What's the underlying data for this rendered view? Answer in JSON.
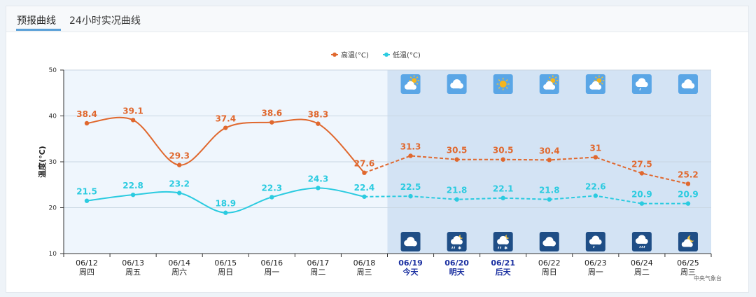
{
  "tabs": [
    {
      "label": "预报曲线",
      "active": true
    },
    {
      "label": "24小时实况曲线",
      "active": false
    }
  ],
  "source_note": "中央气象台",
  "chart_data": {
    "type": "line",
    "ylabel": "温度(°C)",
    "ylim": [
      10,
      50
    ],
    "yticks": [
      10,
      20,
      30,
      40,
      50
    ],
    "grid": true,
    "legend": {
      "placement": "top-center"
    },
    "dates": [
      "06/12",
      "06/13",
      "06/14",
      "06/15",
      "06/16",
      "06/17",
      "06/18",
      "06/19",
      "06/20",
      "06/21",
      "06/22",
      "06/23",
      "06/24",
      "06/25"
    ],
    "weekdays": [
      "周四",
      "周五",
      "周六",
      "周日",
      "周一",
      "周二",
      "周三",
      "今天",
      "明天",
      "后天",
      "周日",
      "周一",
      "周二",
      "周三"
    ],
    "forecast_start_index": 7,
    "highlight_day_indices": [
      7,
      8,
      9
    ],
    "series": [
      {
        "name": "高温(°C)",
        "color": "#e0682e",
        "values": [
          38.4,
          39.1,
          29.3,
          37.4,
          38.6,
          38.3,
          27.6,
          31.3,
          30.5,
          30.5,
          30.4,
          31,
          27.5,
          25.2
        ]
      },
      {
        "name": "低温(°C)",
        "color": "#2bcbe0",
        "values": [
          21.5,
          22.8,
          23.2,
          18.9,
          22.3,
          24.3,
          22.4,
          22.5,
          21.8,
          22.1,
          21.8,
          22.6,
          20.9,
          20.9
        ]
      }
    ],
    "day_icons": [
      "partly-cloudy-day-icon",
      "cloudy-icon",
      "sunny-icon",
      "partly-cloudy-day-icon",
      "partly-cloudy-day-icon",
      "light-rain-day-icon",
      "cloudy-icon"
    ],
    "night_icons": [
      "cloudy-night-icon",
      "rain-snow-night-icon",
      "rain-snow-night-icon",
      "cloudy-night-icon",
      "light-rain-night-icon",
      "rain-night-icon",
      "partly-cloudy-night-icon"
    ]
  }
}
